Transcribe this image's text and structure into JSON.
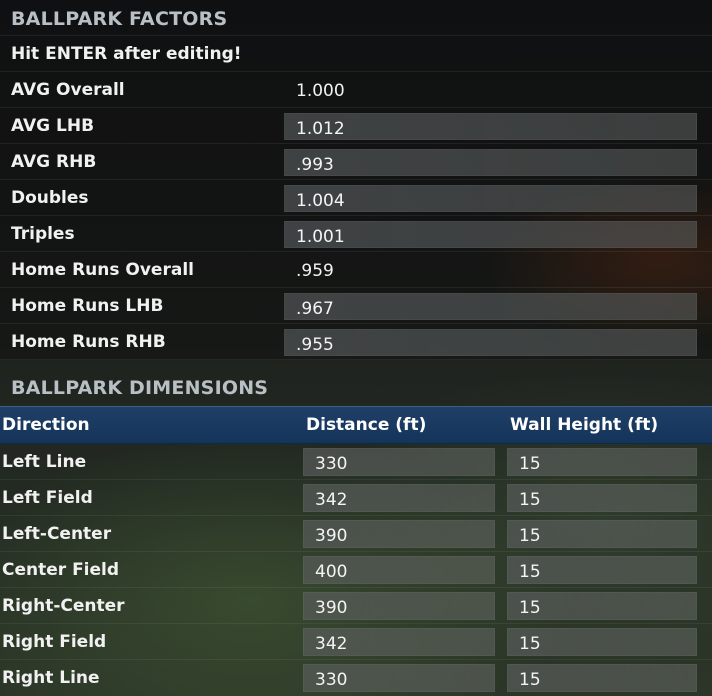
{
  "factors": {
    "title": "BALLPARK FACTORS",
    "instruction": "Hit ENTER after editing!",
    "rows": [
      {
        "label": "AVG Overall",
        "value": "1.000"
      },
      {
        "label": "AVG LHB",
        "value": "1.012"
      },
      {
        "label": "AVG RHB",
        "value": ".993"
      },
      {
        "label": "Doubles",
        "value": "1.004"
      },
      {
        "label": "Triples",
        "value": "1.001"
      },
      {
        "label": "Home Runs Overall",
        "value": ".959"
      },
      {
        "label": "Home Runs LHB",
        "value": ".967"
      },
      {
        "label": "Home Runs RHB",
        "value": ".955"
      }
    ]
  },
  "dimensions": {
    "title": "BALLPARK DIMENSIONS",
    "headers": {
      "direction": "Direction",
      "distance": "Distance (ft)",
      "wall_height": "Wall Height (ft)"
    },
    "rows": [
      {
        "direction": "Left Line",
        "distance": "330",
        "wall_height": "15"
      },
      {
        "direction": "Left Field",
        "distance": "342",
        "wall_height": "15"
      },
      {
        "direction": "Left-Center",
        "distance": "390",
        "wall_height": "15"
      },
      {
        "direction": "Center Field",
        "distance": "400",
        "wall_height": "15"
      },
      {
        "direction": "Right-Center",
        "distance": "390",
        "wall_height": "15"
      },
      {
        "direction": "Right Field",
        "distance": "342",
        "wall_height": "15"
      },
      {
        "direction": "Right Line",
        "distance": "330",
        "wall_height": "15"
      }
    ]
  },
  "colors": {
    "header_bar": "#1a3a60",
    "section_title": "#b9c0c5",
    "field_bg": "#5a5e60"
  }
}
